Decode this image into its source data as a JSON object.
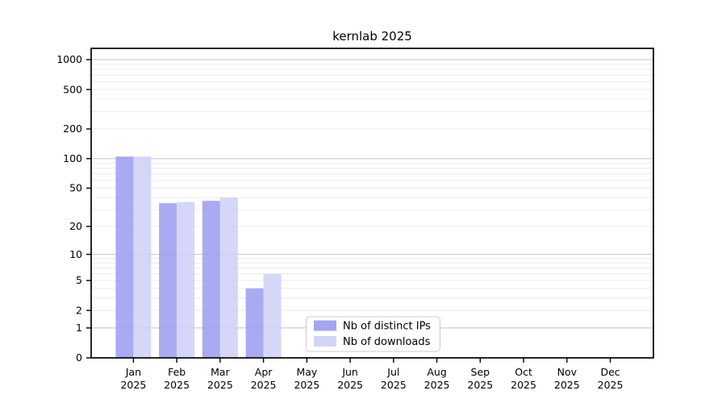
{
  "chart_data": {
    "type": "bar",
    "title": "kernlab 2025",
    "year": "2025",
    "categories": [
      "Jan",
      "Feb",
      "Mar",
      "Apr",
      "May",
      "Jun",
      "Jul",
      "Aug",
      "Sep",
      "Oct",
      "Nov",
      "Dec"
    ],
    "series": [
      {
        "name": "Nb of distinct IPs",
        "color": "#9b9bf1",
        "values": [
          105,
          35,
          37,
          4,
          0,
          0,
          0,
          0,
          0,
          0,
          0,
          0
        ]
      },
      {
        "name": "Nb of downloads",
        "color": "#cfcff8",
        "values": [
          105,
          36,
          40,
          6,
          0,
          0,
          0,
          0,
          0,
          0,
          0,
          0
        ]
      }
    ],
    "y_ticks": [
      0,
      1,
      2,
      5,
      10,
      20,
      50,
      100,
      200,
      500,
      1000
    ],
    "y_scale": "log10(value+1)",
    "ylim": [
      0,
      1300
    ],
    "grid": true,
    "major_grid_values": [
      1,
      10,
      100,
      1000
    ],
    "grid_color_major": "#c4c4c4",
    "grid_color_minor": "#ececec",
    "axis_color": "#000000",
    "legend": {
      "position": "lower-center",
      "border_color": "#cccccc",
      "entries": [
        {
          "label": "Nb of distinct IPs",
          "swatch_color": "#9b9bf1"
        },
        {
          "label": "Nb of downloads",
          "swatch_color": "#cfcff8"
        }
      ]
    }
  }
}
